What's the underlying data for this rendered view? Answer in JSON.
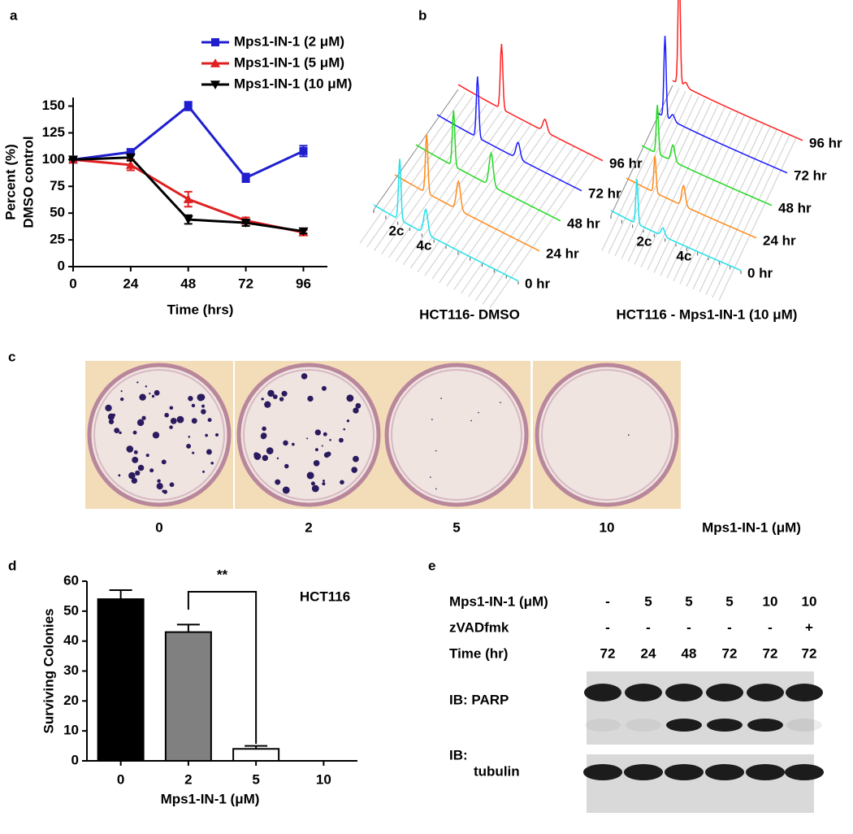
{
  "chart_data": [
    {
      "type": "line",
      "panel": "a",
      "x": [
        0,
        24,
        48,
        72,
        96
      ],
      "xlim": [
        0,
        106
      ],
      "xticks": [
        0,
        24,
        48,
        72,
        96
      ],
      "ylim": [
        0,
        158
      ],
      "yticks": [
        0,
        25,
        50,
        75,
        100,
        125,
        150
      ],
      "xlabel": "Time (hrs)",
      "ylabel": [
        "Percent (%)",
        "DMSO control"
      ],
      "series": [
        {
          "name": "Mps1-IN-1 (2 μM)",
          "color": "#1f1fd0",
          "marker": "square",
          "values": [
            100,
            107,
            150,
            83,
            108
          ],
          "errors": [
            0,
            2,
            4,
            4,
            5
          ]
        },
        {
          "name": "Mps1-IN-1 (5 μM)",
          "color": "#e02020",
          "marker": "triangle-up",
          "values": [
            100,
            95,
            63,
            43,
            32
          ],
          "errors": [
            0,
            5,
            7,
            3,
            2
          ]
        },
        {
          "name": "Mps1-IN-1 (10 μM)",
          "color": "#000000",
          "marker": "triangle-down",
          "values": [
            100,
            102,
            44,
            41,
            33
          ],
          "errors": [
            0,
            3,
            4,
            3,
            2
          ]
        }
      ]
    },
    {
      "type": "bar",
      "panel": "d",
      "categories": [
        "0",
        "2",
        "5",
        "10"
      ],
      "values": [
        54,
        43,
        4,
        0
      ],
      "errors": [
        3,
        2.5,
        1,
        0
      ],
      "colors": [
        "#000000",
        "#808080",
        "#ffffff",
        "#ffffff"
      ],
      "ylim": [
        0,
        60
      ],
      "yticks": [
        0,
        10,
        20,
        30,
        40,
        50,
        60
      ],
      "xlabel": "Mps1-IN-1 (μM)",
      "ylabel": "Surviving Colonies",
      "annotations": [
        "**",
        "HCT116"
      ]
    }
  ],
  "figure": {
    "panel_labels": [
      "a",
      "b",
      "c",
      "d",
      "e"
    ],
    "flow": {
      "titles": [
        "HCT116- DMSO",
        "HCT116 - Mps1-IN-1 (10 μM)"
      ],
      "timepoints": [
        "0 hr",
        "24 hr",
        "48 hr",
        "72 hr",
        "96 hr"
      ],
      "ploidy": [
        "2c",
        "4c"
      ],
      "colors": [
        "#22e0ea",
        "#ff8a1a",
        "#22d822",
        "#1a1aff",
        "#ff2020"
      ]
    },
    "colonies": {
      "doses": [
        "0",
        "2",
        "5",
        "10"
      ],
      "label": "Mps1-IN-1 (μM)"
    },
    "blot": {
      "rows": [
        {
          "label": "Mps1-IN-1 (μM)",
          "cells": [
            "-",
            "5",
            "5",
            "5",
            "10",
            "10"
          ]
        },
        {
          "label": "zVADfmk",
          "cells": [
            "-",
            "-",
            "-",
            "-",
            "-",
            "+"
          ]
        },
        {
          "label": "Time (hr)",
          "cells": [
            "72",
            "24",
            "48",
            "72",
            "72",
            "72"
          ]
        }
      ],
      "probes": [
        "IB: PARP",
        "IB:",
        "tubulin"
      ]
    }
  }
}
